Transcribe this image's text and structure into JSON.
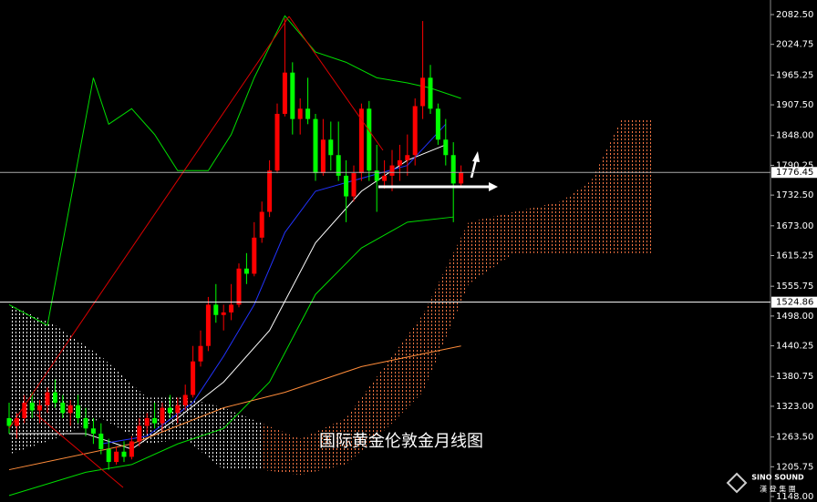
{
  "chart_data": {
    "type": "candlestick",
    "caption": "国际黄金伦敦金月线图",
    "logo": {
      "name": "SINO SOUND",
      "subtitle": "漢 登 集 團"
    },
    "up_color": "#ff0000",
    "down_color": "#00ff00",
    "ylim": [
      1148.0,
      2082.5
    ],
    "yticks": [
      {
        "value": 2082.5,
        "label": "2082.50"
      },
      2024.75,
      1965.25,
      {
        "value": 1907.5,
        "label": "1907.50"
      },
      {
        "value": 1848.0,
        "label": "1848.00"
      },
      1790.25,
      {
        "value": 1732.5,
        "label": "1732.50"
      },
      {
        "value": 1673.0,
        "label": "1673.00"
      },
      1615.25,
      1555.75,
      {
        "value": 1498.0,
        "label": "1498.00"
      },
      1440.25,
      1380.75,
      {
        "value": 1323.0,
        "label": "1323.00"
      },
      {
        "value": 1263.5,
        "label": "1263.50"
      },
      1205.75,
      {
        "value": 1148.0,
        "label": "1148.00"
      }
    ],
    "price_lines": [
      1776.45,
      1524.86
    ],
    "candles": {
      "open": [
        1300,
        1285,
        1300,
        1330,
        1315,
        1325,
        1350,
        1330,
        1310,
        1325,
        1300,
        1280,
        1270,
        1240,
        1215,
        1235,
        1225,
        1255,
        1285,
        1300,
        1290,
        1320,
        1310,
        1325,
        1345,
        1410,
        1440,
        1520,
        1500,
        1505,
        1520,
        1590,
        1580,
        1650,
        1700,
        1780,
        1890,
        1970,
        1880,
        1900,
        1880,
        1775,
        1840,
        1810,
        1770,
        1730,
        1775,
        1900,
        1780,
        1760,
        1770,
        1790,
        1800,
        1810,
        1905,
        1960,
        1900,
        1840,
        1810,
        1755
      ],
      "high": [
        1330,
        1310,
        1345,
        1350,
        1335,
        1360,
        1375,
        1345,
        1335,
        1345,
        1320,
        1300,
        1290,
        1260,
        1245,
        1255,
        1265,
        1300,
        1310,
        1330,
        1330,
        1345,
        1340,
        1365,
        1440,
        1470,
        1535,
        1560,
        1520,
        1560,
        1600,
        1620,
        1680,
        1720,
        1800,
        1910,
        2075,
        1990,
        1920,
        1960,
        1890,
        1880,
        1875,
        1875,
        1800,
        1790,
        1910,
        1915,
        1830,
        1800,
        1820,
        1830,
        1850,
        1920,
        2070,
        1985,
        1910,
        1880,
        1835,
        1790
      ],
      "low": [
        1270,
        1260,
        1290,
        1300,
        1290,
        1310,
        1320,
        1300,
        1285,
        1290,
        1265,
        1250,
        1230,
        1200,
        1210,
        1215,
        1220,
        1245,
        1270,
        1280,
        1275,
        1300,
        1290,
        1315,
        1340,
        1400,
        1430,
        1485,
        1470,
        1490,
        1515,
        1560,
        1575,
        1640,
        1690,
        1775,
        1885,
        1850,
        1850,
        1870,
        1760,
        1770,
        1780,
        1760,
        1680,
        1720,
        1760,
        1760,
        1700,
        1745,
        1740,
        1760,
        1770,
        1790,
        1880,
        1890,
        1830,
        1790,
        1680,
        1750
      ],
      "close": [
        1285,
        1300,
        1330,
        1315,
        1325,
        1350,
        1330,
        1310,
        1325,
        1300,
        1280,
        1270,
        1240,
        1215,
        1235,
        1225,
        1255,
        1285,
        1300,
        1290,
        1320,
        1310,
        1325,
        1345,
        1410,
        1440,
        1520,
        1500,
        1505,
        1520,
        1590,
        1580,
        1650,
        1700,
        1780,
        1890,
        1970,
        1880,
        1900,
        1880,
        1775,
        1840,
        1810,
        1770,
        1730,
        1775,
        1900,
        1780,
        1760,
        1770,
        1790,
        1800,
        1810,
        1905,
        1960,
        1900,
        1840,
        1810,
        1755,
        1776.45
      ]
    },
    "lines": [
      {
        "color": "#00dd00",
        "x": [
          0,
          5,
          11,
          13,
          16,
          19,
          22,
          26,
          29,
          32,
          36,
          40,
          44,
          48,
          52,
          55,
          59
        ],
        "values": [
          1520,
          1480,
          1960,
          1870,
          1900,
          1850,
          1780,
          1780,
          1850,
          1960,
          2080,
          2010,
          1990,
          1960,
          1950,
          1940,
          1920
        ]
      },
      {
        "color": "#00dd00",
        "x": [
          0,
          10,
          16,
          22,
          28,
          34,
          40,
          46,
          52,
          58
        ],
        "values": [
          1150,
          1195,
          1210,
          1250,
          1280,
          1370,
          1540,
          1630,
          1680,
          1690
        ]
      },
      {
        "color": "#ffffff",
        "x": [
          0,
          10,
          16,
          22,
          28,
          34,
          40,
          46,
          52,
          57
        ],
        "values": [
          1270,
          1270,
          1240,
          1300,
          1370,
          1470,
          1640,
          1740,
          1800,
          1830
        ]
      },
      {
        "color": "#2233ff",
        "x": [
          12,
          18,
          24,
          28,
          32,
          36,
          40,
          46,
          52,
          57
        ],
        "values": [
          1250,
          1265,
          1330,
          1420,
          1520,
          1660,
          1740,
          1765,
          1790,
          1870
        ]
      },
      {
        "color": "#ff8c3a",
        "x": [
          0,
          16,
          28,
          36,
          46,
          59
        ],
        "values": [
          1200,
          1250,
          1320,
          1350,
          1400,
          1440
        ]
      }
    ],
    "clouds": [
      {
        "color": "#ffffff",
        "x": [
          0,
          6,
          12,
          18,
          23,
          28,
          33
        ],
        "span_a": [
          1520,
          1480,
          1420,
          1340,
          1340,
          1320,
          1290
        ],
        "span_b": [
          1230,
          1260,
          1300,
          1250,
          1260,
          1200,
          1200
        ]
      },
      {
        "color": "#ff7744",
        "x": [
          33,
          38,
          44,
          50,
          54,
          60,
          66,
          72,
          76,
          80,
          84
        ],
        "span_a": [
          1290,
          1260,
          1300,
          1420,
          1500,
          1680,
          1700,
          1720,
          1760,
          1880,
          1880
        ],
        "span_b": [
          1200,
          1190,
          1210,
          1290,
          1350,
          1560,
          1620,
          1620,
          1620,
          1620,
          1620
        ]
      }
    ]
  }
}
